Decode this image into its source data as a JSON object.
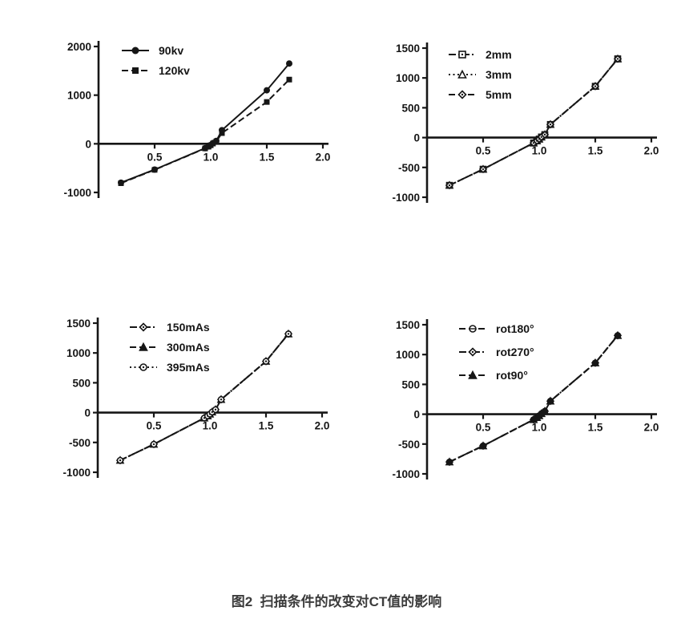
{
  "figure_caption": "图2  扫描条件的改变对CT值的影响",
  "ink_color": "#161616",
  "caption_color": "#3c3c3c",
  "chart_data": [
    {
      "id": "tube-voltage",
      "type": "line",
      "x": [
        0.2,
        0.5,
        0.95,
        0.98,
        1.0,
        1.02,
        1.05,
        1.1,
        1.5,
        1.7
      ],
      "series": [
        {
          "name": "90kv",
          "marker": "filled-circle",
          "line": "solid",
          "values": [
            -800,
            -530,
            -90,
            -55,
            -25,
            15,
            60,
            280,
            1100,
            1650
          ]
        },
        {
          "name": "120kv",
          "marker": "filled-square",
          "line": "dashed",
          "values": [
            -810,
            -535,
            -95,
            -60,
            -30,
            5,
            50,
            220,
            860,
            1320
          ]
        }
      ],
      "xlabel": "",
      "ylabel": "",
      "xticks": [
        0.5,
        1.0,
        1.5,
        2.0
      ],
      "yticks": [
        2000,
        1000,
        0,
        -1000
      ],
      "xlim": [
        0,
        2.0
      ],
      "ylim": [
        -1000,
        2000
      ],
      "grid": false,
      "legend_position": "top-left-inside"
    },
    {
      "id": "slice-thickness",
      "type": "line",
      "x": [
        0.2,
        0.5,
        0.95,
        0.98,
        1.0,
        1.02,
        1.05,
        1.1,
        1.5,
        1.7
      ],
      "series": [
        {
          "name": "2mm",
          "marker": "open-square-dot",
          "line": "dashdot",
          "values": [
            -800,
            -530,
            -90,
            -55,
            -25,
            10,
            50,
            220,
            860,
            1320
          ]
        },
        {
          "name": "3mm",
          "marker": "open-triangle",
          "line": "dotted",
          "values": [
            -800,
            -530,
            -90,
            -55,
            -25,
            10,
            50,
            220,
            860,
            1320
          ]
        },
        {
          "name": "5mm",
          "marker": "open-diamond-dot",
          "line": "dashed",
          "values": [
            -800,
            -530,
            -90,
            -55,
            -25,
            10,
            50,
            220,
            860,
            1320
          ]
        }
      ],
      "xlabel": "",
      "ylabel": "",
      "xticks": [
        0.5,
        1.0,
        1.5,
        2.0
      ],
      "yticks": [
        1500,
        1000,
        500,
        0,
        -500,
        -1000
      ],
      "xlim": [
        0,
        2.0
      ],
      "ylim": [
        -1000,
        1500
      ],
      "grid": false,
      "legend_position": "top-left-inside"
    },
    {
      "id": "tube-current",
      "type": "line",
      "x": [
        0.2,
        0.5,
        0.95,
        0.98,
        1.0,
        1.02,
        1.05,
        1.1,
        1.5,
        1.7
      ],
      "series": [
        {
          "name": "150mAs",
          "marker": "open-diamond-dot",
          "line": "dashdot",
          "values": [
            -800,
            -530,
            -90,
            -55,
            -25,
            10,
            50,
            220,
            860,
            1320
          ]
        },
        {
          "name": "300mAs",
          "marker": "filled-triangle",
          "line": "dashed",
          "values": [
            -800,
            -530,
            -90,
            -55,
            -25,
            10,
            50,
            220,
            860,
            1320
          ]
        },
        {
          "name": "395mAs",
          "marker": "open-circle-dot",
          "line": "dotted",
          "values": [
            -800,
            -530,
            -90,
            -55,
            -25,
            10,
            50,
            220,
            860,
            1320
          ]
        }
      ],
      "xlabel": "",
      "ylabel": "",
      "xticks": [
        0.5,
        1.0,
        1.5,
        2.0
      ],
      "yticks": [
        1500,
        1000,
        500,
        0,
        -500,
        -1000
      ],
      "xlim": [
        0,
        2.0
      ],
      "ylim": [
        -1000,
        1500
      ],
      "grid": false,
      "legend_position": "top-left-inside"
    },
    {
      "id": "rotation",
      "type": "line",
      "x": [
        0.2,
        0.5,
        0.95,
        0.98,
        1.0,
        1.02,
        1.05,
        1.1,
        1.5,
        1.7
      ],
      "series": [
        {
          "name": "rot180°",
          "marker": "circle-bar",
          "line": "dashed",
          "values": [
            -800,
            -530,
            -90,
            -55,
            -25,
            10,
            50,
            220,
            860,
            1320
          ]
        },
        {
          "name": "rot270°",
          "marker": "open-diamond-dot",
          "line": "dashdot",
          "values": [
            -800,
            -530,
            -90,
            -55,
            -25,
            10,
            50,
            220,
            860,
            1320
          ]
        },
        {
          "name": "rot90°",
          "marker": "filled-triangle",
          "line": "dashed",
          "values": [
            -800,
            -530,
            -90,
            -55,
            -25,
            10,
            50,
            220,
            860,
            1320
          ]
        }
      ],
      "xlabel": "",
      "ylabel": "",
      "xticks": [
        0.5,
        1.0,
        1.5,
        2.0
      ],
      "yticks": [
        1500,
        1000,
        500,
        0,
        -500,
        -1000
      ],
      "xlim": [
        0,
        2.0
      ],
      "ylim": [
        -1000,
        1500
      ],
      "grid": false,
      "legend_position": "top-left-inside"
    }
  ]
}
